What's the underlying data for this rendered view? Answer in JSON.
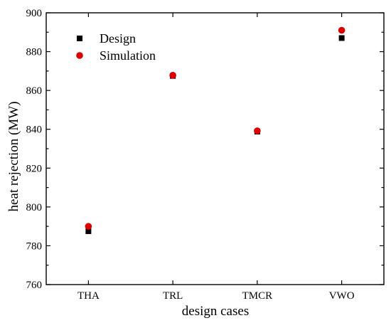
{
  "chart_data": {
    "type": "scatter",
    "title": "",
    "xlabel": "design cases",
    "ylabel": "heat rejection (MW)",
    "categories": [
      "THA",
      "TRL",
      "TMCR",
      "VWO"
    ],
    "ylim": [
      760,
      900
    ],
    "yticks": [
      760,
      780,
      800,
      820,
      840,
      860,
      880,
      900
    ],
    "grid": false,
    "legend_position": "top-left",
    "series": [
      {
        "name": "Design",
        "marker": "square",
        "color": "#000000",
        "values": [
          787.5,
          867.5,
          838.8,
          887.0
        ]
      },
      {
        "name": "Simulation",
        "marker": "circle",
        "color": "#dd0000",
        "values": [
          790.0,
          867.8,
          839.2,
          891.0
        ]
      }
    ]
  }
}
